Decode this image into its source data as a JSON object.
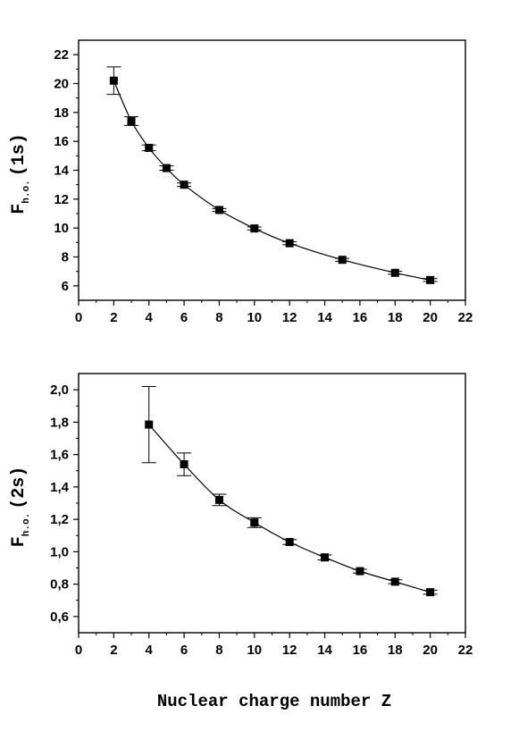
{
  "chart_data": [
    {
      "type": "scatter",
      "ylabel_main": "F",
      "ylabel_sub": "h.o.",
      "ylabel_tail": "(1s)",
      "xlim": [
        0,
        22
      ],
      "ylim": [
        5,
        23
      ],
      "x_ticks": [
        "0",
        "2",
        "4",
        "6",
        "8",
        "10",
        "12",
        "14",
        "16",
        "18",
        "20",
        "22"
      ],
      "x_tick_values": [
        0,
        2,
        4,
        6,
        8,
        10,
        12,
        14,
        16,
        18,
        20,
        22
      ],
      "y_ticks": [
        "6",
        "8",
        "10",
        "12",
        "14",
        "16",
        "18",
        "20",
        "22"
      ],
      "y_tick_values": [
        6,
        8,
        10,
        12,
        14,
        16,
        18,
        20,
        22
      ],
      "series": [
        {
          "x": [
            2,
            3,
            4,
            5,
            6,
            8,
            10,
            12,
            15,
            18,
            20
          ],
          "y": [
            20.2,
            17.4,
            15.55,
            14.15,
            13.0,
            11.25,
            9.97,
            8.95,
            7.8,
            6.9,
            6.4
          ],
          "err": [
            0.95,
            0.3,
            0.2,
            0.15,
            0.12,
            0.1,
            0.1,
            0.1,
            0.1,
            0.1,
            0.1
          ]
        }
      ]
    },
    {
      "type": "scatter",
      "ylabel_main": "F",
      "ylabel_sub": "h.o.",
      "ylabel_tail": "(2s)",
      "xlim": [
        0,
        22
      ],
      "ylim": [
        0.5,
        2.1
      ],
      "x_ticks": [
        "0",
        "2",
        "4",
        "6",
        "8",
        "10",
        "12",
        "14",
        "16",
        "18",
        "20",
        "22"
      ],
      "x_tick_values": [
        0,
        2,
        4,
        6,
        8,
        10,
        12,
        14,
        16,
        18,
        20,
        22
      ],
      "y_ticks": [
        "0,6",
        "0,8",
        "1,0",
        "1,2",
        "1,4",
        "1,6",
        "1,8",
        "2,0"
      ],
      "y_tick_values": [
        0.6,
        0.8,
        1.0,
        1.2,
        1.4,
        1.6,
        1.8,
        2.0
      ],
      "series": [
        {
          "x": [
            4,
            6,
            8,
            10,
            12,
            14,
            16,
            18,
            20
          ],
          "y": [
            1.785,
            1.54,
            1.32,
            1.18,
            1.06,
            0.965,
            0.88,
            0.815,
            0.75
          ],
          "err": [
            0.235,
            0.07,
            0.035,
            0.03,
            0.015,
            0.015,
            0.012,
            0.012,
            0.012
          ]
        }
      ]
    }
  ],
  "xlabel": "Nuclear charge number Z"
}
